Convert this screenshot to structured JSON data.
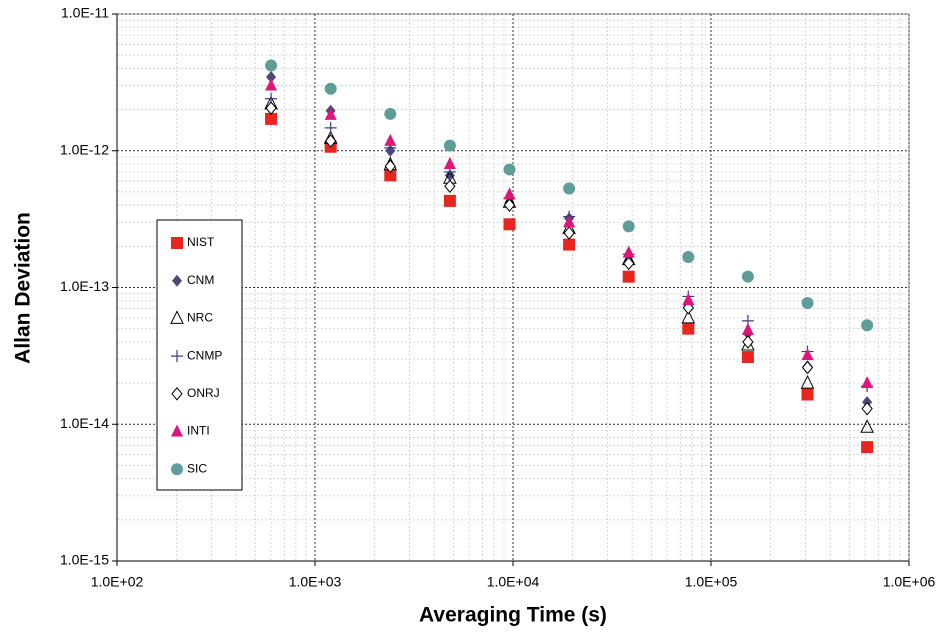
{
  "chart_data": {
    "type": "scatter",
    "x_label": "Averaging Time (s)",
    "y_label": "Allan Deviation",
    "log_x": true,
    "log_y": true,
    "grid": true,
    "minor_grid": true,
    "xlim": [
      100,
      1000000
    ],
    "ylim": [
      1e-15,
      1e-11
    ],
    "xticks": [
      {
        "value": 100,
        "label": "1.0E+02"
      },
      {
        "value": 1000,
        "label": "1.0E+03"
      },
      {
        "value": 10000,
        "label": "1.0E+04"
      },
      {
        "value": 100000,
        "label": "1.0E+05"
      },
      {
        "value": 1000000,
        "label": "1.0E+06"
      }
    ],
    "yticks": [
      {
        "value": 1e-15,
        "label": "1.0E-15"
      },
      {
        "value": 1e-14,
        "label": "1.0E-14"
      },
      {
        "value": 1e-13,
        "label": "1.0E-13"
      },
      {
        "value": 1e-12,
        "label": "1.0E-12"
      },
      {
        "value": 1e-11,
        "label": "1.0E-11"
      }
    ],
    "legend_position": "left",
    "x": [
      600,
      1200,
      2400,
      4800,
      9600,
      19200,
      38400,
      76800,
      153600,
      307200,
      614400
    ],
    "series": [
      {
        "name": "NIST",
        "color": "#e8261f",
        "marker": "square",
        "values": [
          1.71e-12,
          1.07e-12,
          6.6e-13,
          4.3e-13,
          2.9e-13,
          2.06e-13,
          1.2e-13,
          5e-14,
          3.1e-14,
          1.65e-14,
          6.8e-15
        ]
      },
      {
        "name": "CNM",
        "color": "#4a4a7a",
        "marker": "diamond",
        "values": [
          3.46e-12,
          1.96e-12,
          1e-12,
          6.6e-13,
          4.2e-13,
          3.2e-13,
          1.55e-13,
          7.3e-14,
          4.6e-14,
          2.65e-14,
          1.45e-14
        ]
      },
      {
        "name": "NRC",
        "color": "#000000",
        "marker": "open-triangle",
        "values": [
          2.2e-12,
          1.23e-12,
          7.9e-13,
          6.3e-13,
          4.2e-13,
          2.7e-13,
          1.6e-13,
          6e-14,
          3.8e-14,
          2e-14,
          9.5e-15
        ]
      },
      {
        "name": "CNMP",
        "color": "#3a3a8a",
        "marker": "plus",
        "values": [
          2.4e-12,
          1.47e-12,
          1.05e-12,
          7e-13,
          4.5e-13,
          3.3e-13,
          1.75e-13,
          8.6e-14,
          5.7e-14,
          3.4e-14,
          1.9e-14
        ]
      },
      {
        "name": "ONRJ",
        "color": "#000000",
        "marker": "open-diamond",
        "values": [
          2.05e-12,
          1.18e-12,
          7.7e-13,
          5.5e-13,
          4e-13,
          2.5e-13,
          1.5e-13,
          7.1e-14,
          4e-14,
          2.6e-14,
          1.3e-14
        ]
      },
      {
        "name": "INTI",
        "color": "#e0147a",
        "marker": "triangle",
        "values": [
          3e-12,
          1.83e-12,
          1.18e-12,
          8e-13,
          4.8e-13,
          3e-13,
          1.8e-13,
          8.1e-14,
          4.9e-14,
          3.2e-14,
          2e-14
        ]
      },
      {
        "name": "SIC",
        "color": "#5f9e96",
        "marker": "circle",
        "values": [
          4.2e-12,
          2.84e-12,
          1.86e-12,
          1.09e-12,
          7.3e-13,
          5.3e-13,
          2.8e-13,
          1.67e-13,
          1.2e-13,
          7.7e-14,
          5.3e-14
        ]
      }
    ]
  }
}
